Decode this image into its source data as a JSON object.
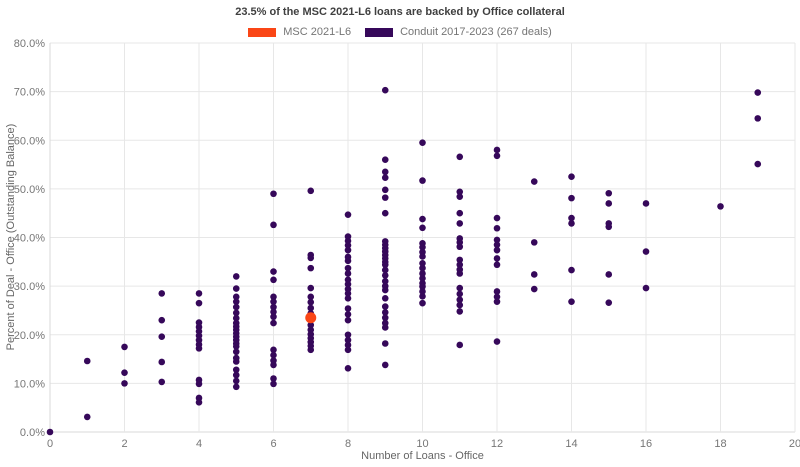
{
  "title": "23.5% of the MSC 2021-L6 loans are backed by Office collateral",
  "legend": {
    "items": [
      {
        "label": "MSC 2021-L6",
        "color": "#fa4616"
      },
      {
        "label": "Conduit 2017-2023 (267 deals)",
        "color": "#36085a"
      }
    ]
  },
  "colors": {
    "msc_orange": "#fa4616",
    "conduit_purple": "#36085a",
    "gridline": "#e7e7e7",
    "axis_line": "#d9d9d9",
    "tick_text": "#767676",
    "background": "#ffffff"
  },
  "chart_data": {
    "type": "scatter",
    "title": "23.5% of the MSC 2021-L6 loans are backed by Office collateral",
    "xlabel": "Number of Loans - Office",
    "ylabel": "Percent of Deal - Office (Outstanding Balance)",
    "xlim": [
      0,
      20
    ],
    "ylim": [
      0,
      80
    ],
    "grid": true,
    "legend_position": "top-center",
    "xticks": [
      [
        0,
        "0"
      ],
      [
        2,
        "2"
      ],
      [
        4,
        "4"
      ],
      [
        6,
        "6"
      ],
      [
        8,
        "8"
      ],
      [
        10,
        "10"
      ],
      [
        12,
        "12"
      ],
      [
        14,
        "14"
      ],
      [
        16,
        "16"
      ],
      [
        18,
        "18"
      ],
      [
        20,
        "20"
      ]
    ],
    "yticks": [
      [
        0,
        "0.0%"
      ],
      [
        10,
        "10.0%"
      ],
      [
        20,
        "20.0%"
      ],
      [
        30,
        "30.0%"
      ],
      [
        40,
        "40.0%"
      ],
      [
        50,
        "50.0%"
      ],
      [
        60,
        "60.0%"
      ],
      [
        70,
        "70.0%"
      ],
      [
        80,
        "80.0%"
      ]
    ],
    "series": [
      {
        "name": "Conduit 2017-2023 (267 deals)",
        "color": "#36085a",
        "radius": 3.3,
        "points": [
          [
            0,
            0.0
          ],
          [
            1,
            14.6
          ],
          [
            1,
            3.1
          ],
          [
            2,
            17.5
          ],
          [
            2,
            12.2
          ],
          [
            2,
            10.0
          ],
          [
            3,
            28.5
          ],
          [
            3,
            23.0
          ],
          [
            3,
            19.6
          ],
          [
            3,
            14.4
          ],
          [
            3,
            10.3
          ],
          [
            4,
            28.5
          ],
          [
            4,
            26.5
          ],
          [
            4,
            22.5
          ],
          [
            4,
            21.6
          ],
          [
            4,
            20.7
          ],
          [
            4,
            19.8
          ],
          [
            4,
            18.9
          ],
          [
            4,
            18.0
          ],
          [
            4,
            17.2
          ],
          [
            4,
            10.7
          ],
          [
            4,
            9.9
          ],
          [
            4,
            7.0
          ],
          [
            4,
            6.1
          ],
          [
            5,
            32.0
          ],
          [
            5,
            29.5
          ],
          [
            5,
            27.8
          ],
          [
            5,
            26.8
          ],
          [
            5,
            25.7
          ],
          [
            5,
            24.5
          ],
          [
            5,
            23.4
          ],
          [
            5,
            22.4
          ],
          [
            5,
            21.7
          ],
          [
            5,
            21.0
          ],
          [
            5,
            20.3
          ],
          [
            5,
            19.6
          ],
          [
            5,
            18.9
          ],
          [
            5,
            18.2
          ],
          [
            5,
            17.6
          ],
          [
            5,
            16.5
          ],
          [
            5,
            15.2
          ],
          [
            5,
            14.5
          ],
          [
            5,
            12.8
          ],
          [
            5,
            11.7
          ],
          [
            5,
            10.5
          ],
          [
            5,
            9.3
          ],
          [
            6,
            49.0
          ],
          [
            6,
            42.6
          ],
          [
            6,
            33.0
          ],
          [
            6,
            31.3
          ],
          [
            6,
            27.8
          ],
          [
            6,
            26.8
          ],
          [
            6,
            25.7
          ],
          [
            6,
            24.7
          ],
          [
            6,
            23.7
          ],
          [
            6,
            22.4
          ],
          [
            6,
            16.9
          ],
          [
            6,
            15.8
          ],
          [
            6,
            14.7
          ],
          [
            6,
            13.8
          ],
          [
            6,
            11.0
          ],
          [
            6,
            9.9
          ],
          [
            7,
            49.6
          ],
          [
            7,
            36.4
          ],
          [
            7,
            35.8
          ],
          [
            7,
            33.7
          ],
          [
            7,
            29.6
          ],
          [
            7,
            27.8
          ],
          [
            7,
            26.7
          ],
          [
            7,
            25.5
          ],
          [
            7,
            24.4
          ],
          [
            7,
            22.0
          ],
          [
            7,
            21.0
          ],
          [
            7,
            20.1
          ],
          [
            7,
            19.3
          ],
          [
            7,
            18.5
          ],
          [
            7,
            17.7
          ],
          [
            7,
            16.9
          ],
          [
            8,
            44.7
          ],
          [
            8,
            40.2
          ],
          [
            8,
            39.3
          ],
          [
            8,
            38.4
          ],
          [
            8,
            37.4
          ],
          [
            8,
            36.0
          ],
          [
            8,
            35.2
          ],
          [
            8,
            33.7
          ],
          [
            8,
            32.6
          ],
          [
            8,
            31.3
          ],
          [
            8,
            30.4
          ],
          [
            8,
            29.4
          ],
          [
            8,
            28.5
          ],
          [
            8,
            27.5
          ],
          [
            8,
            25.4
          ],
          [
            8,
            24.2
          ],
          [
            8,
            23.0
          ],
          [
            8,
            20.0
          ],
          [
            8,
            18.9
          ],
          [
            8,
            17.9
          ],
          [
            8,
            16.9
          ],
          [
            8,
            13.1
          ],
          [
            9,
            70.3
          ],
          [
            9,
            56.0
          ],
          [
            9,
            53.5
          ],
          [
            9,
            52.3
          ],
          [
            9,
            49.8
          ],
          [
            9,
            48.2
          ],
          [
            9,
            45.0
          ],
          [
            9,
            39.2
          ],
          [
            9,
            38.5
          ],
          [
            9,
            37.8
          ],
          [
            9,
            37.1
          ],
          [
            9,
            36.4
          ],
          [
            9,
            35.7
          ],
          [
            9,
            35.0
          ],
          [
            9,
            34.4
          ],
          [
            9,
            33.3
          ],
          [
            9,
            32.2
          ],
          [
            9,
            31.0
          ],
          [
            9,
            30.0
          ],
          [
            9,
            29.2
          ],
          [
            9,
            27.5
          ],
          [
            9,
            25.8
          ],
          [
            9,
            24.6
          ],
          [
            9,
            23.5
          ],
          [
            9,
            22.4
          ],
          [
            9,
            21.5
          ],
          [
            9,
            18.2
          ],
          [
            9,
            13.8
          ],
          [
            10,
            59.5
          ],
          [
            10,
            51.7
          ],
          [
            10,
            43.8
          ],
          [
            10,
            42.0
          ],
          [
            10,
            38.8
          ],
          [
            10,
            38.0
          ],
          [
            10,
            37.0
          ],
          [
            10,
            36.1
          ],
          [
            10,
            34.7
          ],
          [
            10,
            33.7
          ],
          [
            10,
            32.6
          ],
          [
            10,
            31.6
          ],
          [
            10,
            30.6
          ],
          [
            10,
            29.9
          ],
          [
            10,
            28.9
          ],
          [
            10,
            27.9
          ],
          [
            10,
            26.5
          ],
          [
            11,
            56.6
          ],
          [
            11,
            49.4
          ],
          [
            11,
            48.4
          ],
          [
            11,
            45.0
          ],
          [
            11,
            42.9
          ],
          [
            11,
            39.8
          ],
          [
            11,
            39.0
          ],
          [
            11,
            38.1
          ],
          [
            11,
            35.4
          ],
          [
            11,
            34.4
          ],
          [
            11,
            33.4
          ],
          [
            11,
            32.6
          ],
          [
            11,
            29.6
          ],
          [
            11,
            28.4
          ],
          [
            11,
            27.2
          ],
          [
            11,
            26.1
          ],
          [
            11,
            24.8
          ],
          [
            11,
            17.9
          ],
          [
            12,
            58.0
          ],
          [
            12,
            56.8
          ],
          [
            12,
            44.0
          ],
          [
            12,
            41.9
          ],
          [
            12,
            39.5
          ],
          [
            12,
            38.5
          ],
          [
            12,
            37.4
          ],
          [
            12,
            35.7
          ],
          [
            12,
            34.4
          ],
          [
            12,
            28.9
          ],
          [
            12,
            27.8
          ],
          [
            12,
            26.8
          ],
          [
            12,
            18.6
          ],
          [
            13,
            51.5
          ],
          [
            13,
            39.0
          ],
          [
            13,
            32.4
          ],
          [
            13,
            29.4
          ],
          [
            14,
            52.5
          ],
          [
            14,
            48.1
          ],
          [
            14,
            44.0
          ],
          [
            14,
            42.9
          ],
          [
            14,
            33.3
          ],
          [
            14,
            26.8
          ],
          [
            15,
            49.1
          ],
          [
            15,
            47.0
          ],
          [
            15,
            42.9
          ],
          [
            15,
            42.2
          ],
          [
            15,
            32.4
          ],
          [
            15,
            26.6
          ],
          [
            16,
            47.0
          ],
          [
            16,
            37.1
          ],
          [
            16,
            29.6
          ],
          [
            18,
            46.4
          ],
          [
            19,
            69.8
          ],
          [
            19,
            64.5
          ],
          [
            19,
            55.1
          ]
        ]
      },
      {
        "name": "MSC 2021-L6",
        "color": "#fa4616",
        "radius": 5.5,
        "points": [
          [
            7,
            23.5
          ]
        ]
      }
    ]
  }
}
